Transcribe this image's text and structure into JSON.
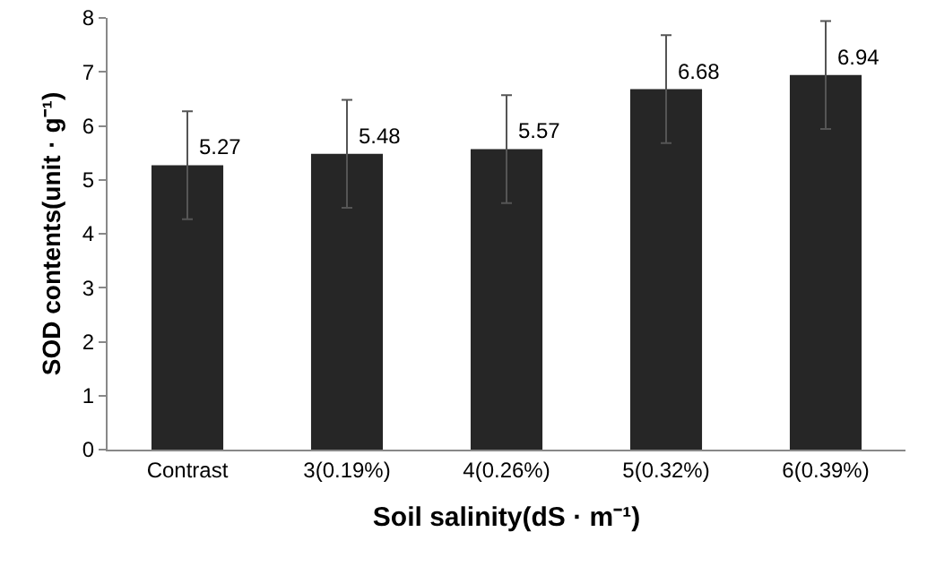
{
  "chart_data": {
    "type": "bar",
    "xlabel": "Soil salinity(dS · m⁻¹)",
    "ylabel": "SOD contents(unit · g⁻¹)",
    "categories": [
      "Contrast",
      "3(0.19%)",
      "4(0.26%)",
      "5(0.32%)",
      "6(0.39%)"
    ],
    "values": [
      5.27,
      5.48,
      5.57,
      6.68,
      6.94
    ],
    "errors": [
      1,
      1,
      1,
      1,
      1
    ],
    "color": "#262626",
    "ylim": [
      0,
      8
    ],
    "yticks": [
      0,
      1,
      2,
      3,
      4,
      5,
      6,
      7,
      8
    ],
    "grid": false,
    "data_labels": true
  }
}
